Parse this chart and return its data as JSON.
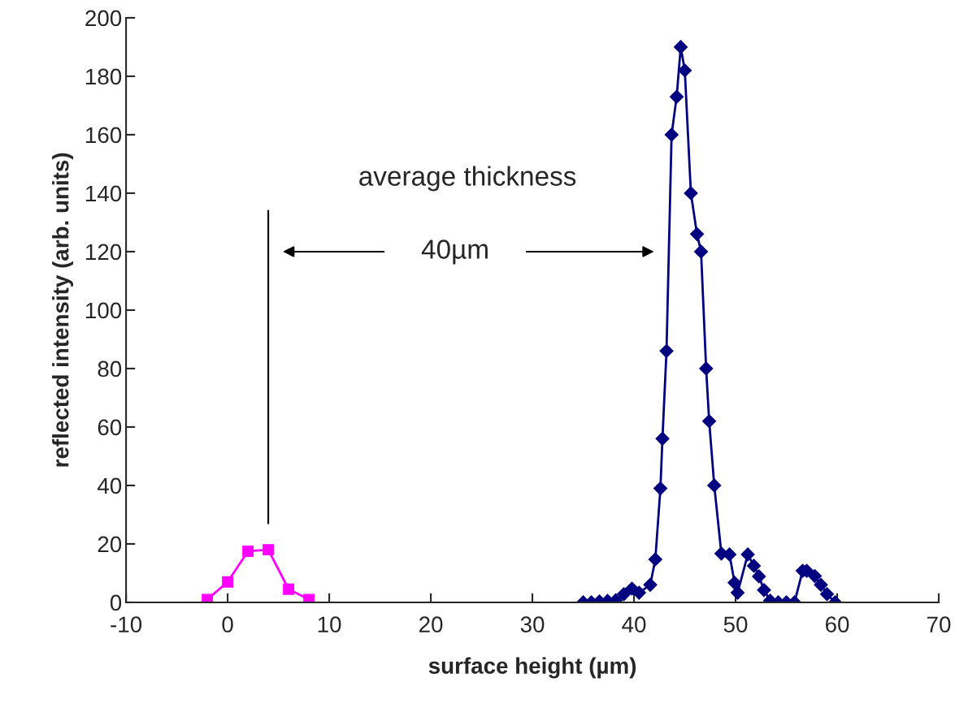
{
  "chart_data": {
    "type": "line",
    "xlabel": "surface height (µm)",
    "ylabel": "reflected intensity (arb. units)",
    "xlim": [
      -10,
      70
    ],
    "xticks": [
      -10,
      0,
      10,
      20,
      30,
      40,
      50,
      60,
      70
    ],
    "ylim": [
      0,
      200
    ],
    "yticks": [
      0,
      20,
      40,
      60,
      80,
      100,
      120,
      140,
      160,
      180,
      200
    ],
    "grid": false,
    "legend": false,
    "series": [
      {
        "color": "#ff00ff",
        "marker": "square",
        "x": [
          -2,
          0,
          2,
          4,
          6,
          8
        ],
        "values": [
          1,
          7,
          17.5,
          18,
          4.5,
          1
        ]
      },
      {
        "color": "#000080",
        "marker": "diamond",
        "x": [
          35.0,
          35.8,
          36.6,
          37.4,
          38.2,
          39.0,
          39.8,
          40.5,
          41.6,
          42.1,
          42.6,
          42.8,
          43.2,
          43.7,
          44.2,
          44.6,
          45.0,
          45.6,
          46.2,
          46.6,
          47.1,
          47.4,
          47.9,
          48.6,
          49.4,
          49.9,
          50.2,
          51.2,
          51.8,
          52.3,
          52.8,
          53.4,
          54.2,
          55.0,
          55.8,
          56.6,
          57.0,
          57.8,
          58.4,
          59.0,
          59.8
        ],
        "values": [
          0,
          0,
          0.3,
          0.5,
          0.7,
          2.8,
          4.7,
          3.3,
          6,
          14.7,
          39,
          56,
          86,
          160,
          173,
          190,
          182,
          140,
          126,
          120,
          80,
          62,
          40,
          16.7,
          16.4,
          6.7,
          3.3,
          16.4,
          12.5,
          8.9,
          4.2,
          0.6,
          0,
          0,
          0,
          10.8,
          10.8,
          9,
          6,
          2.8,
          0
        ]
      }
    ],
    "ref_lines": [
      {
        "axis": "x",
        "value": 4
      }
    ],
    "annotations": [
      "average thickness",
      "40µm"
    ]
  }
}
